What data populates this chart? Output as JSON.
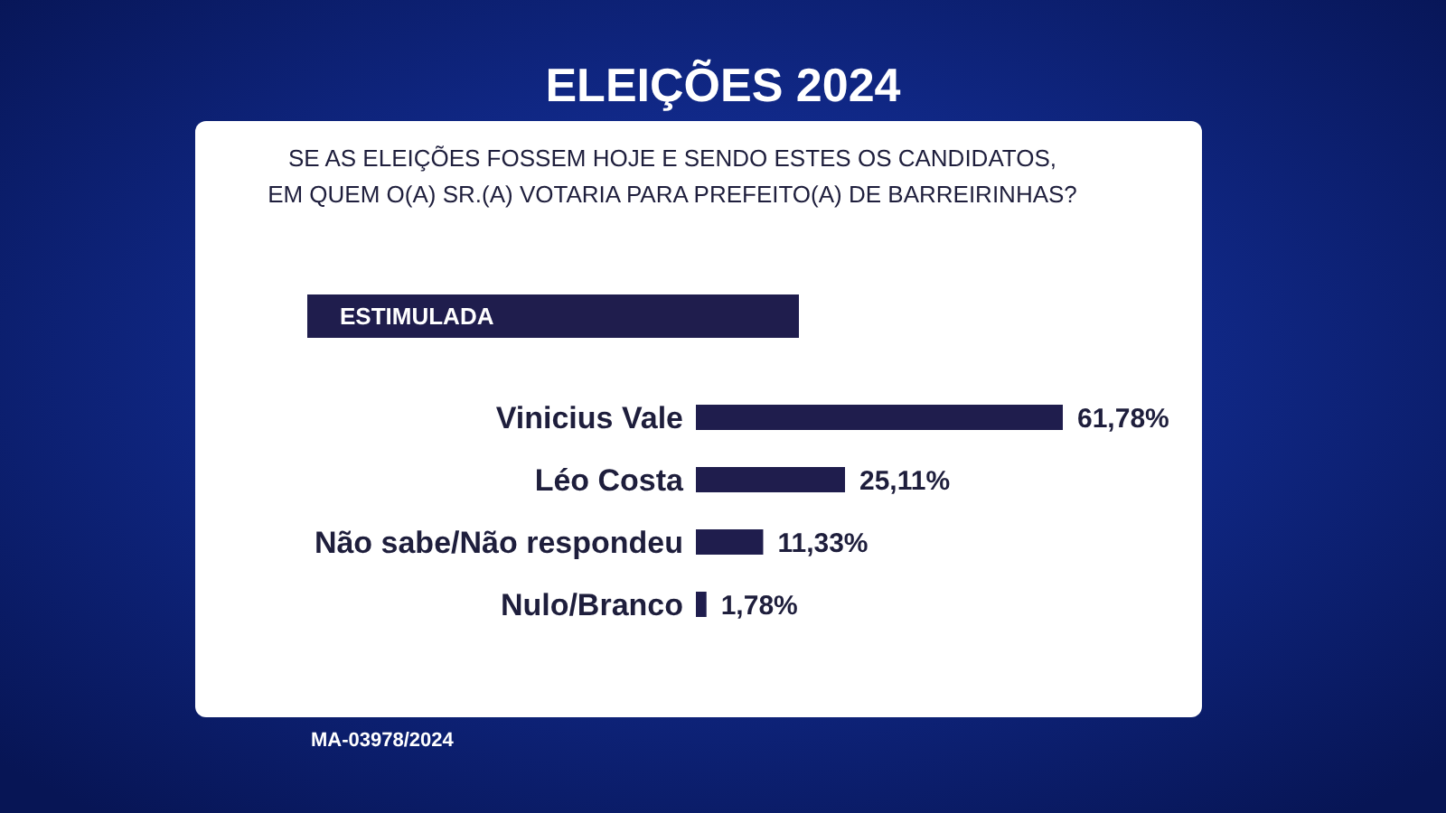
{
  "chart_data": {
    "type": "bar",
    "orientation": "horizontal",
    "title": "ELEIÇÕES 2024",
    "subtitle": "SE AS ELEIÇÕES FOSSEM HOJE E SENDO ESTES OS CANDIDATOS,\nEM QUEM O(A) SR.(A) VOTARIA PARA PREFEITO(A) DE BARREIRINHAS?",
    "categories": [
      "Vinicius Vale",
      "Léo Costa",
      "Não sabe/Não respondeu",
      "Nulo/Branco"
    ],
    "values": [
      61.78,
      25.11,
      11.33,
      1.78
    ],
    "color": "#1f1d4d",
    "value_labels": [
      "61,78%",
      "25,11%",
      "11,33%",
      "1,78%"
    ],
    "annotations": [
      "ESTIMULADA",
      "MA-03978/2024"
    ]
  }
}
